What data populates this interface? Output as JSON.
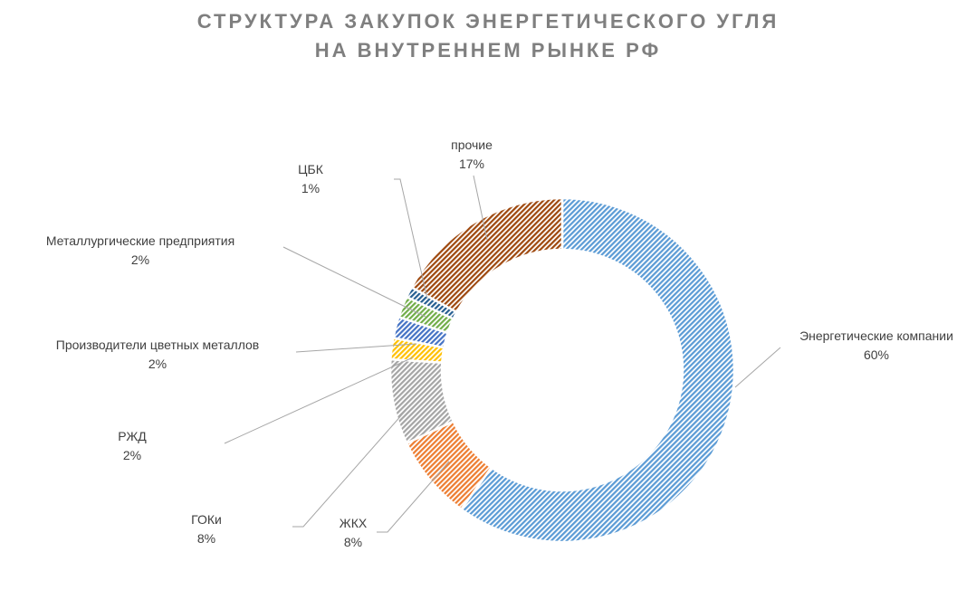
{
  "chart_data": {
    "type": "pie",
    "variant": "doughnut",
    "title_lines": [
      "СТРУКТУРА ЗАКУПОК ЭНЕРГЕТИЧЕСКОГО УГЛЯ",
      "НА ВНУТРЕННЕМ РЫНКЕ РФ"
    ],
    "slices": [
      {
        "label": "Энергетические компании",
        "value": 60,
        "display": "60%",
        "color": "#5b9bd5"
      },
      {
        "label": "ЖКХ",
        "value": 8,
        "display": "8%",
        "color": "#ed7d31"
      },
      {
        "label": "ГОКи",
        "value": 8,
        "display": "8%",
        "color": "#a5a5a5"
      },
      {
        "label": "РЖД",
        "value": 2,
        "display": "2%",
        "color": "#ffc000"
      },
      {
        "label": "Производители цветных металлов",
        "value": 2,
        "display": "2%",
        "color": "#4472c4"
      },
      {
        "label": "Металлургические предприятия",
        "value": 2,
        "display": "2%",
        "color": "#70ad47"
      },
      {
        "label": "ЦБК",
        "value": 1,
        "display": "1%",
        "color": "#255e91"
      },
      {
        "label": "прочие",
        "value": 17,
        "display": "17%",
        "color": "#9e480e"
      }
    ]
  }
}
